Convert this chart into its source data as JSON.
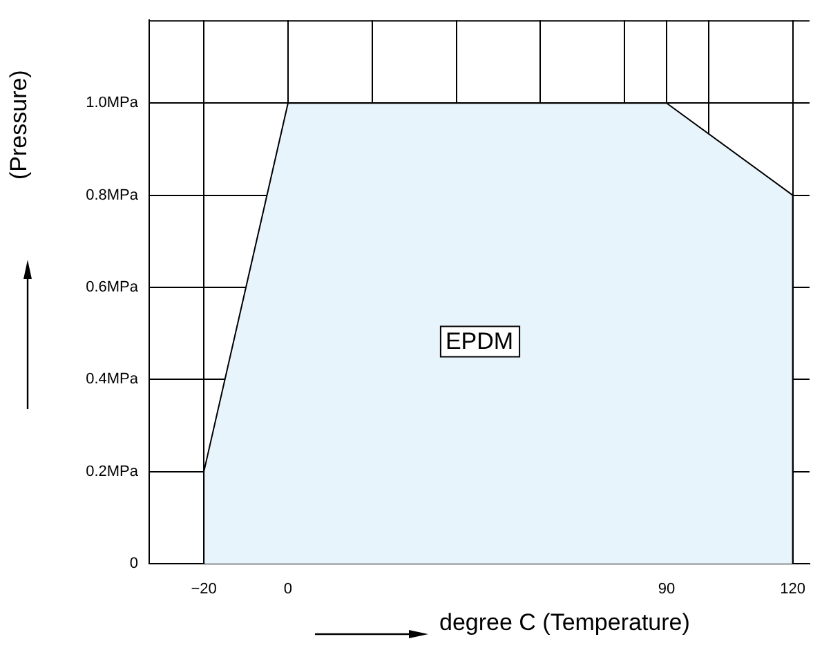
{
  "chart_data": {
    "type": "area",
    "xlabel": "degree C (Temperature)",
    "ylabel": "(Pressure)",
    "series": [
      {
        "color": "#e8f4fc",
        "x": [
          -20,
          -20,
          0,
          90,
          120,
          120
        ],
        "values": [
          0,
          0.2,
          1.0,
          1.0,
          0.8,
          0
        ]
      }
    ],
    "annotations": [
      "EPDM"
    ],
    "xlim": [
      -33,
      124
    ],
    "xticks": [
      {
        "value": -20,
        "label": "−20"
      },
      0,
      {
        "value": 20,
        "label": null
      },
      {
        "value": 40,
        "label": null
      },
      {
        "value": 60,
        "label": null
      },
      {
        "value": 80,
        "label": null
      },
      90,
      {
        "value": 100,
        "label": null
      },
      120
    ],
    "ylim": [
      0,
      1.18
    ],
    "yticks": [
      0,
      {
        "value": 0.2,
        "label": "0.2MPa"
      },
      {
        "value": 0.4,
        "label": "0.4MPa"
      },
      {
        "value": 0.6,
        "label": "0.6MPa"
      },
      {
        "value": 0.8,
        "label": "0.8MPa"
      },
      {
        "value": 1.0,
        "label": "1.0MPa"
      }
    ],
    "grid": true,
    "legend": false,
    "marker": "none"
  }
}
